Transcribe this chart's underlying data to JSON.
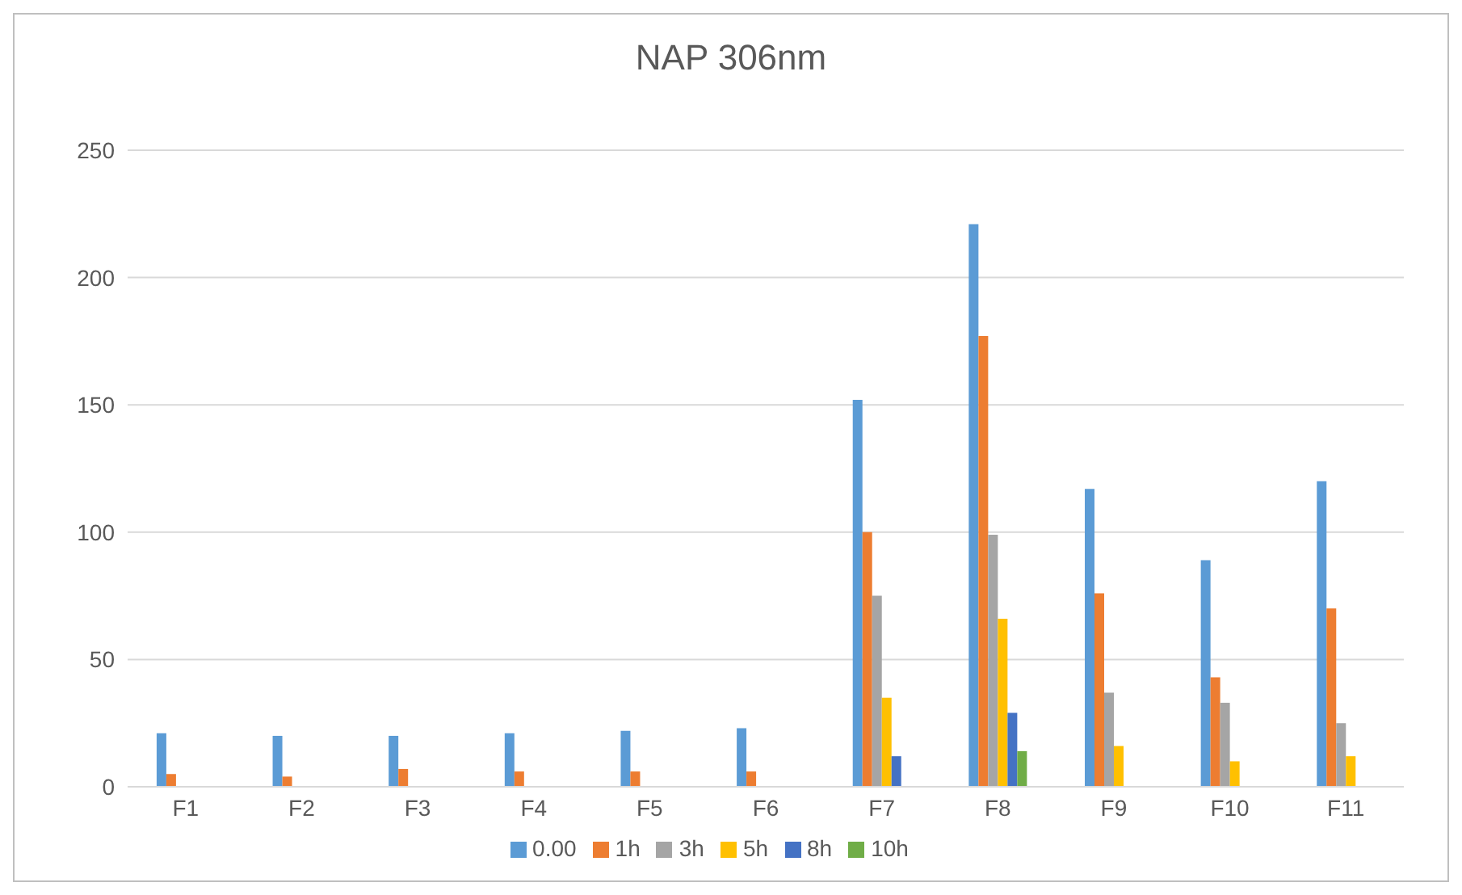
{
  "chart_data": {
    "type": "bar",
    "title": "NAP 306nm",
    "categories": [
      "F1",
      "F2",
      "F3",
      "F4",
      "F5",
      "F6",
      "F7",
      "F8",
      "F9",
      "F10",
      "F11"
    ],
    "series": [
      {
        "name": "0.00",
        "color": "#5b9bd5",
        "values": [
          21,
          20,
          20,
          21,
          22,
          23,
          152,
          221,
          117,
          89,
          120
        ]
      },
      {
        "name": "1h",
        "color": "#ed7d31",
        "values": [
          5,
          4,
          7,
          6,
          6,
          6,
          100,
          177,
          76,
          43,
          70
        ]
      },
      {
        "name": "3h",
        "color": "#a5a5a5",
        "values": [
          0,
          0,
          0,
          0,
          0,
          0,
          75,
          99,
          37,
          33,
          25
        ]
      },
      {
        "name": "5h",
        "color": "#ffc000",
        "values": [
          0,
          0,
          0,
          0,
          0,
          0,
          35,
          66,
          16,
          10,
          12
        ]
      },
      {
        "name": "8h",
        "color": "#4472c4",
        "values": [
          0,
          0,
          0,
          0,
          0,
          0,
          12,
          29,
          0,
          0,
          0
        ]
      },
      {
        "name": "10h",
        "color": "#70ad47",
        "values": [
          0,
          0,
          0,
          0,
          0,
          0,
          0,
          14,
          0,
          0,
          0
        ]
      }
    ],
    "ylim": [
      0,
      250
    ],
    "yticks": [
      0,
      50,
      100,
      150,
      200,
      250
    ],
    "grid": "y",
    "legend": "bottom"
  }
}
